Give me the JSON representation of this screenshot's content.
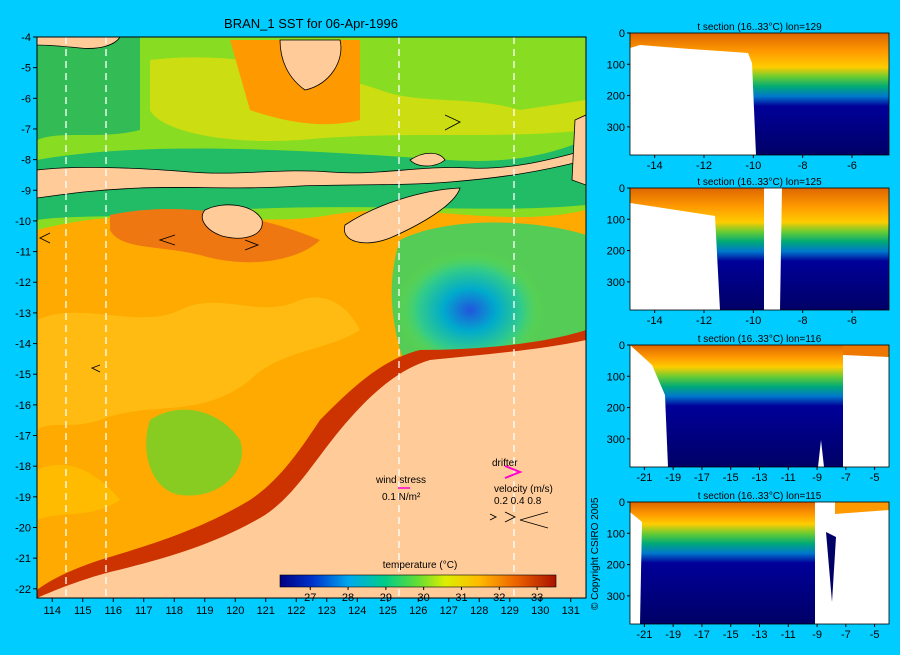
{
  "map": {
    "title": "BRAN_1 SST for 06-Apr-1996",
    "x_ticks": [
      "114",
      "115",
      "116",
      "117",
      "118",
      "119",
      "120",
      "121",
      "122",
      "123",
      "124",
      "125",
      "126",
      "127",
      "128",
      "129",
      "130",
      "131"
    ],
    "y_ticks": [
      "-4",
      "-5",
      "-6",
      "-7",
      "-8",
      "-9",
      "-10",
      "-11",
      "-12",
      "-13",
      "-14",
      "-15",
      "-16",
      "-17",
      "-18",
      "-19",
      "-20",
      "-21",
      "-22"
    ],
    "wind_stress_label": "wind stress",
    "wind_stress_scale": "0.1 N/m²",
    "drifter_label": "drifter",
    "velocity_label": "velocity (m/s)",
    "velocity_scale": "0.2 0.4 0.8",
    "colorbar_title": "temperature (°C)",
    "colorbar_ticks": [
      "27",
      "28",
      "29",
      "30",
      "31",
      "32",
      "33"
    ],
    "copyright": "© Copyright CSIRO 2005"
  },
  "sections": [
    {
      "title": "t section (16..33°C) lon=129",
      "x_ticks": [
        "-14",
        "-12",
        "-10",
        "-8",
        "-6"
      ],
      "y_ticks": [
        "0",
        "100",
        "200",
        "300"
      ]
    },
    {
      "title": "t section (16..33°C) lon=125",
      "x_ticks": [
        "-14",
        "-12",
        "-10",
        "-8",
        "-6"
      ],
      "y_ticks": [
        "0",
        "100",
        "200",
        "300"
      ]
    },
    {
      "title": "t section (16..33°C) lon=116",
      "x_ticks": [
        "-21",
        "-19",
        "-17",
        "-15",
        "-13",
        "-11",
        "-9",
        "-7",
        "-5"
      ],
      "y_ticks": [
        "0",
        "100",
        "200",
        "300"
      ]
    },
    {
      "title": "t section (16..33°C) lon=115",
      "x_ticks": [
        "-21",
        "-19",
        "-17",
        "-15",
        "-13",
        "-11",
        "-9",
        "-7",
        "-5"
      ],
      "y_ticks": [
        "0",
        "100",
        "200",
        "300"
      ]
    }
  ],
  "colors": {
    "background": "#00ccff",
    "land": "#ffcc99",
    "cold": "#000066",
    "warm": "#cc3300"
  },
  "chart_data": [
    {
      "type": "heatmap",
      "title": "BRAN_1 SST for 06-Apr-1996",
      "xlim": [
        113.5,
        131.5
      ],
      "ylim": [
        -22.3,
        -4
      ],
      "colorbar": {
        "label": "temperature (°C)",
        "range": [
          26.2,
          33.5
        ],
        "ticks": [
          27,
          28,
          29,
          30,
          31,
          32,
          33
        ]
      },
      "section_longitudes": [
        114.6,
        115.8,
        125.4,
        129.2
      ]
    },
    {
      "type": "heatmap",
      "title": "t section (16..33°C) lon=129",
      "xlim": [
        -15,
        -4.5
      ],
      "ylim": [
        390,
        0
      ]
    },
    {
      "type": "heatmap",
      "title": "t section (16..33°C) lon=125",
      "xlim": [
        -15,
        -4.5
      ],
      "ylim": [
        390,
        0
      ]
    },
    {
      "type": "heatmap",
      "title": "t section (16..33°C) lon=116",
      "xlim": [
        -22,
        -4
      ],
      "ylim": [
        390,
        0
      ]
    },
    {
      "type": "heatmap",
      "title": "t section (16..33°C) lon=115",
      "xlim": [
        -22,
        -4
      ],
      "ylim": [
        390,
        0
      ]
    }
  ]
}
